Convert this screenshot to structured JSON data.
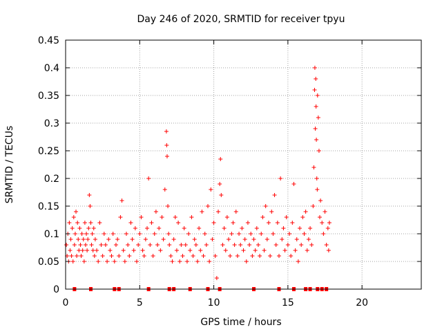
{
  "chart_data": {
    "type": "scatter",
    "title": "Day 246 of 2020, SRMTID for receiver tpyu",
    "xlabel": "GPS time / hours",
    "ylabel": "SRMTID / TECUs",
    "xlim": [
      0,
      24
    ],
    "ylim": [
      0,
      0.45
    ],
    "xticks": [
      0,
      5,
      10,
      15,
      20
    ],
    "xtick_labels": [
      "0",
      "5",
      "10",
      "15",
      "20"
    ],
    "yticks": [
      0,
      0.05,
      0.1,
      0.15,
      0.2,
      0.25,
      0.3,
      0.35,
      0.4,
      0.45
    ],
    "ytick_labels": [
      "0",
      "0.05",
      "0.1",
      "0.15",
      "0.2",
      "0.25",
      "0.3",
      "0.35",
      "0.4",
      "0.45"
    ],
    "grid": true,
    "marker": "+",
    "color": "#ff0000",
    "series": [
      {
        "name": "SRMTID",
        "points": [
          [
            0.05,
            0.08
          ],
          [
            0.1,
            0.06
          ],
          [
            0.15,
            0.1
          ],
          [
            0.2,
            0.05
          ],
          [
            0.25,
            0.12
          ],
          [
            0.3,
            0.07
          ],
          [
            0.35,
            0.09
          ],
          [
            0.4,
            0.06
          ],
          [
            0.45,
            0.11
          ],
          [
            0.5,
            0.05
          ],
          [
            0.55,
            0.13
          ],
          [
            0.6,
            0.08
          ],
          [
            0.65,
            0.1
          ],
          [
            0.7,
            0.14
          ],
          [
            0.75,
            0.06
          ],
          [
            0.8,
            0.12
          ],
          [
            0.85,
            0.09
          ],
          [
            0.9,
            0.07
          ],
          [
            0.95,
            0.11
          ],
          [
            1.0,
            0.08
          ],
          [
            1.05,
            0.06
          ],
          [
            1.1,
            0.1
          ],
          [
            1.15,
            0.07
          ],
          [
            1.2,
            0.09
          ],
          [
            1.25,
            0.05
          ],
          [
            1.3,
            0.12
          ],
          [
            1.35,
            0.08
          ],
          [
            1.4,
            0.1
          ],
          [
            1.45,
            0.07
          ],
          [
            1.5,
            0.09
          ],
          [
            1.55,
            0.11
          ],
          [
            1.6,
            0.17
          ],
          [
            1.65,
            0.15
          ],
          [
            1.7,
            0.12
          ],
          [
            1.75,
            0.08
          ],
          [
            1.8,
            0.1
          ],
          [
            1.85,
            0.07
          ],
          [
            1.9,
            0.11
          ],
          [
            1.95,
            0.06
          ],
          [
            2.0,
            0.09
          ],
          [
            2.1,
            0.07
          ],
          [
            2.2,
            0.05
          ],
          [
            2.3,
            0.12
          ],
          [
            2.4,
            0.08
          ],
          [
            2.5,
            0.06
          ],
          [
            2.6,
            0.1
          ],
          [
            2.7,
            0.08
          ],
          [
            2.8,
            0.05
          ],
          [
            2.9,
            0.09
          ],
          [
            3.0,
            0.07
          ],
          [
            3.1,
            0.06
          ],
          [
            3.2,
            0.1
          ],
          [
            3.3,
            0.05
          ],
          [
            3.4,
            0.08
          ],
          [
            3.5,
            0.09
          ],
          [
            3.6,
            0.06
          ],
          [
            3.7,
            0.13
          ],
          [
            3.8,
            0.16
          ],
          [
            3.9,
            0.07
          ],
          [
            4.0,
            0.05
          ],
          [
            4.1,
            0.1
          ],
          [
            4.2,
            0.08
          ],
          [
            4.3,
            0.06
          ],
          [
            4.4,
            0.12
          ],
          [
            4.5,
            0.09
          ],
          [
            4.6,
            0.07
          ],
          [
            4.7,
            0.11
          ],
          [
            4.8,
            0.05
          ],
          [
            4.9,
            0.08
          ],
          [
            5.0,
            0.1
          ],
          [
            5.1,
            0.13
          ],
          [
            5.2,
            0.07
          ],
          [
            5.3,
            0.06
          ],
          [
            5.4,
            0.09
          ],
          [
            5.5,
            0.11
          ],
          [
            5.6,
            0.2
          ],
          [
            5.7,
            0.08
          ],
          [
            5.8,
            0.12
          ],
          [
            5.9,
            0.06
          ],
          [
            6.0,
            0.1
          ],
          [
            6.1,
            0.14
          ],
          [
            6.2,
            0.08
          ],
          [
            6.3,
            0.11
          ],
          [
            6.4,
            0.07
          ],
          [
            6.5,
            0.13
          ],
          [
            6.6,
            0.09
          ],
          [
            6.7,
            0.18
          ],
          [
            6.8,
            0.285
          ],
          [
            6.82,
            0.26
          ],
          [
            6.85,
            0.24
          ],
          [
            6.9,
            0.15
          ],
          [
            6.95,
            0.1
          ],
          [
            7.0,
            0.08
          ],
          [
            7.1,
            0.06
          ],
          [
            7.2,
            0.05
          ],
          [
            7.3,
            0.09
          ],
          [
            7.4,
            0.13
          ],
          [
            7.5,
            0.07
          ],
          [
            7.6,
            0.12
          ],
          [
            7.7,
            0.05
          ],
          [
            7.8,
            0.08
          ],
          [
            7.9,
            0.06
          ],
          [
            8.0,
            0.11
          ],
          [
            8.1,
            0.08
          ],
          [
            8.2,
            0.05
          ],
          [
            8.3,
            0.1
          ],
          [
            8.4,
            0.07
          ],
          [
            8.5,
            0.13
          ],
          [
            8.6,
            0.06
          ],
          [
            8.7,
            0.09
          ],
          [
            8.8,
            0.08
          ],
          [
            8.9,
            0.05
          ],
          [
            9.0,
            0.11
          ],
          [
            9.1,
            0.07
          ],
          [
            9.2,
            0.14
          ],
          [
            9.3,
            0.06
          ],
          [
            9.4,
            0.1
          ],
          [
            9.5,
            0.08
          ],
          [
            9.6,
            0.15
          ],
          [
            9.7,
            0.05
          ],
          [
            9.8,
            0.18
          ],
          [
            9.9,
            0.09
          ],
          [
            10.0,
            0.12
          ],
          [
            10.1,
            0.06
          ],
          [
            10.2,
            0.02
          ],
          [
            10.3,
            0.14
          ],
          [
            10.4,
            0.19
          ],
          [
            10.45,
            0.235
          ],
          [
            10.5,
            0.17
          ],
          [
            10.6,
            0.08
          ],
          [
            10.7,
            0.11
          ],
          [
            10.8,
            0.07
          ],
          [
            10.9,
            0.13
          ],
          [
            11.0,
            0.09
          ],
          [
            11.1,
            0.06
          ],
          [
            11.2,
            0.1
          ],
          [
            11.3,
            0.12
          ],
          [
            11.4,
            0.08
          ],
          [
            11.5,
            0.14
          ],
          [
            11.6,
            0.06
          ],
          [
            11.7,
            0.1
          ],
          [
            11.8,
            0.08
          ],
          [
            11.9,
            0.11
          ],
          [
            12.0,
            0.07
          ],
          [
            12.1,
            0.09
          ],
          [
            12.2,
            0.05
          ],
          [
            12.3,
            0.12
          ],
          [
            12.4,
            0.08
          ],
          [
            12.5,
            0.1
          ],
          [
            12.6,
            0.06
          ],
          [
            12.7,
            0.09
          ],
          [
            12.8,
            0.07
          ],
          [
            12.9,
            0.11
          ],
          [
            13.0,
            0.08
          ],
          [
            13.1,
            0.06
          ],
          [
            13.2,
            0.1
          ],
          [
            13.3,
            0.13
          ],
          [
            13.4,
            0.07
          ],
          [
            13.5,
            0.15
          ],
          [
            13.6,
            0.09
          ],
          [
            13.7,
            0.12
          ],
          [
            13.8,
            0.06
          ],
          [
            13.9,
            0.14
          ],
          [
            14.0,
            0.1
          ],
          [
            14.1,
            0.17
          ],
          [
            14.2,
            0.08
          ],
          [
            14.3,
            0.12
          ],
          [
            14.4,
            0.06
          ],
          [
            14.5,
            0.2
          ],
          [
            14.6,
            0.09
          ],
          [
            14.7,
            0.11
          ],
          [
            14.8,
            0.07
          ],
          [
            14.9,
            0.13
          ],
          [
            15.0,
            0.08
          ],
          [
            15.1,
            0.1
          ],
          [
            15.2,
            0.06
          ],
          [
            15.3,
            0.12
          ],
          [
            15.4,
            0.19
          ],
          [
            15.5,
            0.07
          ],
          [
            15.6,
            0.09
          ],
          [
            15.7,
            0.05
          ],
          [
            15.8,
            0.11
          ],
          [
            15.9,
            0.08
          ],
          [
            16.0,
            0.13
          ],
          [
            16.1,
            0.1
          ],
          [
            16.2,
            0.14
          ],
          [
            16.3,
            0.07
          ],
          [
            16.4,
            0.09
          ],
          [
            16.5,
            0.11
          ],
          [
            16.6,
            0.08
          ],
          [
            16.7,
            0.15
          ],
          [
            16.75,
            0.22
          ],
          [
            16.8,
            0.36
          ],
          [
            16.82,
            0.4
          ],
          [
            16.85,
            0.29
          ],
          [
            16.88,
            0.38
          ],
          [
            16.9,
            0.33
          ],
          [
            16.92,
            0.27
          ],
          [
            16.95,
            0.2
          ],
          [
            16.98,
            0.18
          ],
          [
            17.0,
            0.35
          ],
          [
            17.05,
            0.31
          ],
          [
            17.1,
            0.25
          ],
          [
            17.15,
            0.13
          ],
          [
            17.2,
            0.16
          ],
          [
            17.3,
            0.12
          ],
          [
            17.4,
            0.1
          ],
          [
            17.5,
            0.14
          ],
          [
            17.6,
            0.08
          ],
          [
            17.7,
            0.11
          ],
          [
            17.75,
            0.07
          ],
          [
            17.8,
            0.12
          ]
        ]
      }
    ],
    "baseline_markers_x": [
      0.6,
      1.7,
      3.3,
      3.6,
      5.6,
      7.0,
      7.3,
      8.4,
      9.6,
      10.4,
      12.7,
      14.4,
      15.4,
      16.2,
      16.5,
      17.0,
      17.3,
      17.6
    ]
  }
}
